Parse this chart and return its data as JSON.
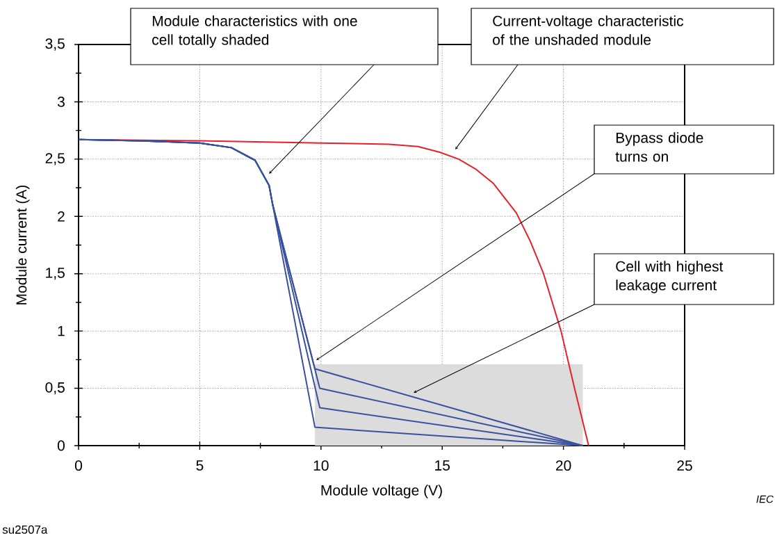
{
  "chart_data": {
    "type": "line",
    "xlabel": "Module voltage (V)",
    "ylabel": "Module current (A)",
    "xlim": [
      0,
      25
    ],
    "ylim": [
      0,
      3.5
    ],
    "grid": true,
    "xticks": [
      0,
      5,
      10,
      15,
      20,
      25
    ],
    "yticks": [
      0,
      {
        "value": 0.5,
        "label": "0,5"
      },
      1,
      {
        "value": 1.5,
        "label": "1,5"
      },
      2,
      {
        "value": 2.5,
        "label": "2,5"
      },
      3,
      {
        "value": 3.5,
        "label": "3,5"
      }
    ],
    "series": [
      {
        "type": "area",
        "color": "#dcdcdc",
        "x": [
          9.75,
          20.8
        ],
        "values": [
          0.71,
          0.71
        ]
      },
      {
        "color": "#e8202a",
        "x": [
          0,
          5,
          10,
          12.8,
          14.0,
          14.9,
          15.68,
          16.4,
          17.1,
          18.06,
          18.64,
          19.18,
          19.9,
          20.47,
          21.04
        ],
        "values": [
          2.67,
          2.66,
          2.64,
          2.63,
          2.61,
          2.56,
          2.5,
          2.41,
          2.29,
          2.03,
          1.78,
          1.5,
          1.0,
          0.49,
          0
        ]
      },
      {
        "color": "#3850a0",
        "x": [
          0,
          2.5,
          5,
          6.3,
          7.28,
          7.86,
          8.0,
          9.75,
          20.8
        ],
        "values": [
          2.67,
          2.66,
          2.64,
          2.6,
          2.49,
          2.27,
          2.11,
          0.16,
          0
        ]
      },
      {
        "color": "#3850a0",
        "x": [
          0,
          2.5,
          5,
          6.3,
          7.28,
          7.86,
          8.0,
          9.95,
          20.8
        ],
        "values": [
          2.67,
          2.66,
          2.64,
          2.6,
          2.49,
          2.27,
          2.11,
          0.33,
          0
        ]
      },
      {
        "color": "#3850a0",
        "x": [
          0,
          2.5,
          5,
          6.3,
          7.28,
          7.86,
          8.0,
          9.95,
          20.8
        ],
        "values": [
          2.67,
          2.66,
          2.64,
          2.6,
          2.49,
          2.27,
          2.11,
          0.5,
          0
        ]
      },
      {
        "color": "#3850a0",
        "x": [
          0,
          2.5,
          5,
          6.3,
          7.28,
          7.86,
          8.0,
          9.75,
          20.8
        ],
        "values": [
          2.67,
          2.66,
          2.64,
          2.6,
          2.49,
          2.27,
          2.11,
          0.67,
          0
        ]
      }
    ],
    "annotations": [
      "Module characteristics with one cell totally shaded",
      "Current-voltage characteristic of the unshaded module",
      "Bypass diode turns on",
      "Cell with highest leakage current",
      "IEC",
      "su2507a"
    ]
  }
}
